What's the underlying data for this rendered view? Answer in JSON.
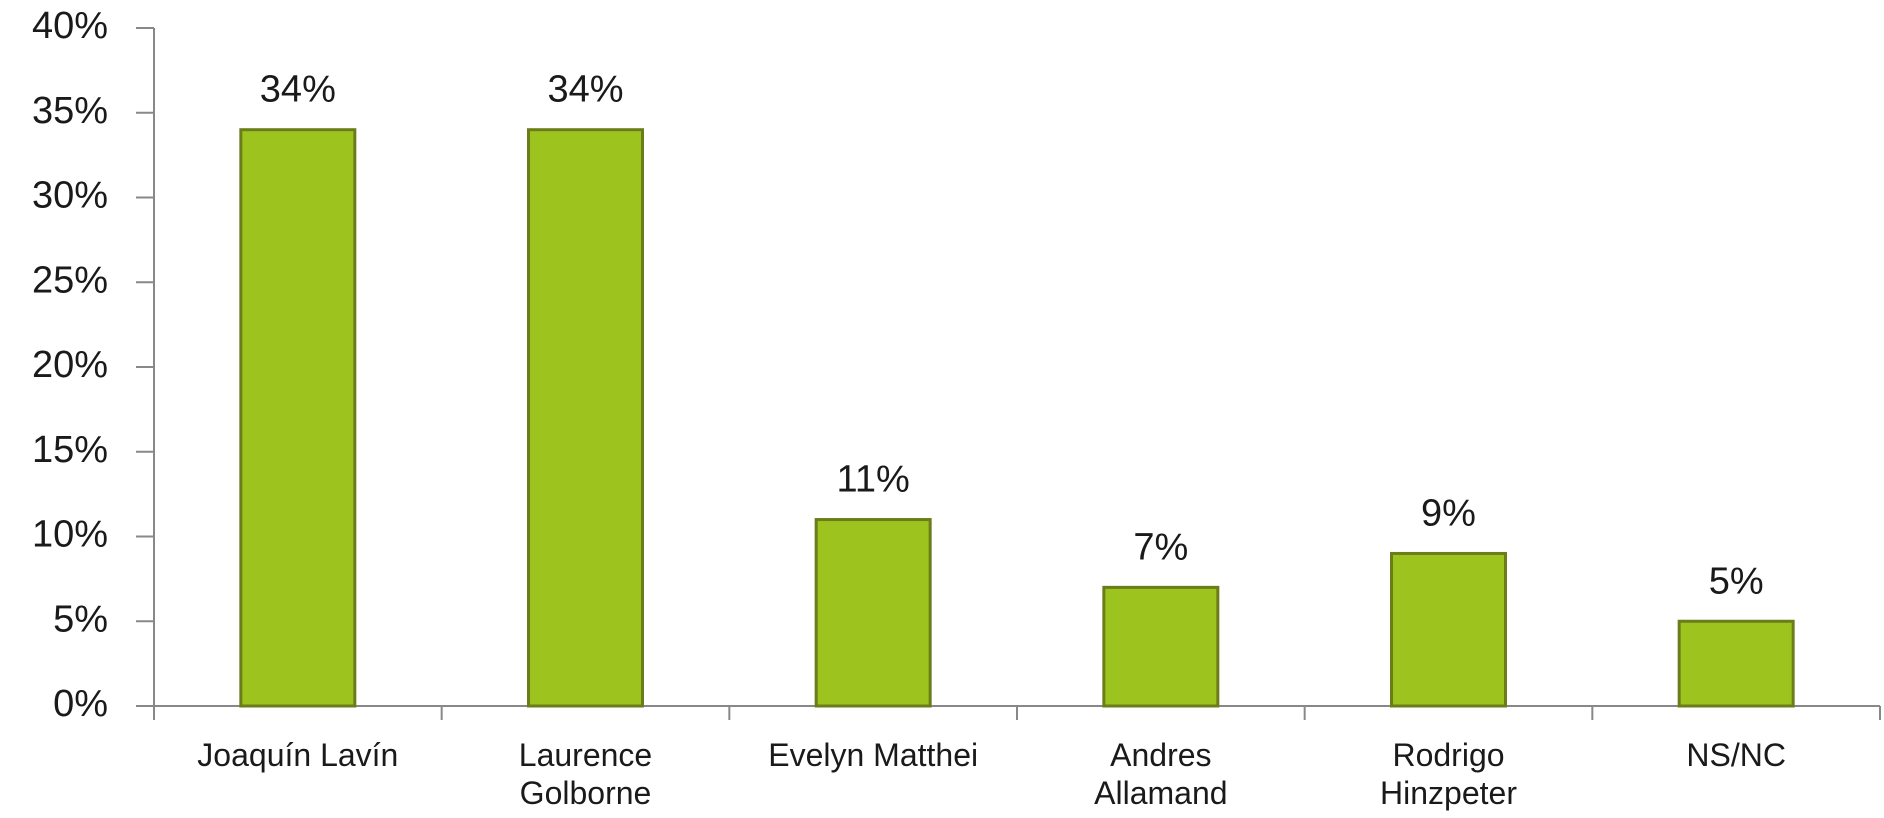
{
  "chart_data": {
    "type": "bar",
    "categories": [
      "Joaquín Lavín",
      "Laurence Golborne",
      "Evelyn Matthei",
      "Andres Allamand",
      "Rodrigo Hinzpeter",
      "NS/NC"
    ],
    "values": [
      34,
      34,
      11,
      7,
      9,
      5
    ],
    "value_labels": [
      "34%",
      "34%",
      "11%",
      "7%",
      "9%",
      "5%"
    ],
    "color": "#9dc31e",
    "ylim": [
      0,
      40
    ],
    "yticks": [
      {
        "value": 0,
        "label": "0%"
      },
      {
        "value": 5,
        "label": "5%"
      },
      {
        "value": 10,
        "label": "10%"
      },
      {
        "value": 15,
        "label": "15%"
      },
      {
        "value": 20,
        "label": "20%"
      },
      {
        "value": 25,
        "label": "25%"
      },
      {
        "value": 30,
        "label": "30%"
      },
      {
        "value": 35,
        "label": "35%"
      },
      {
        "value": 40,
        "label": "40%"
      }
    ],
    "grid": false
  }
}
